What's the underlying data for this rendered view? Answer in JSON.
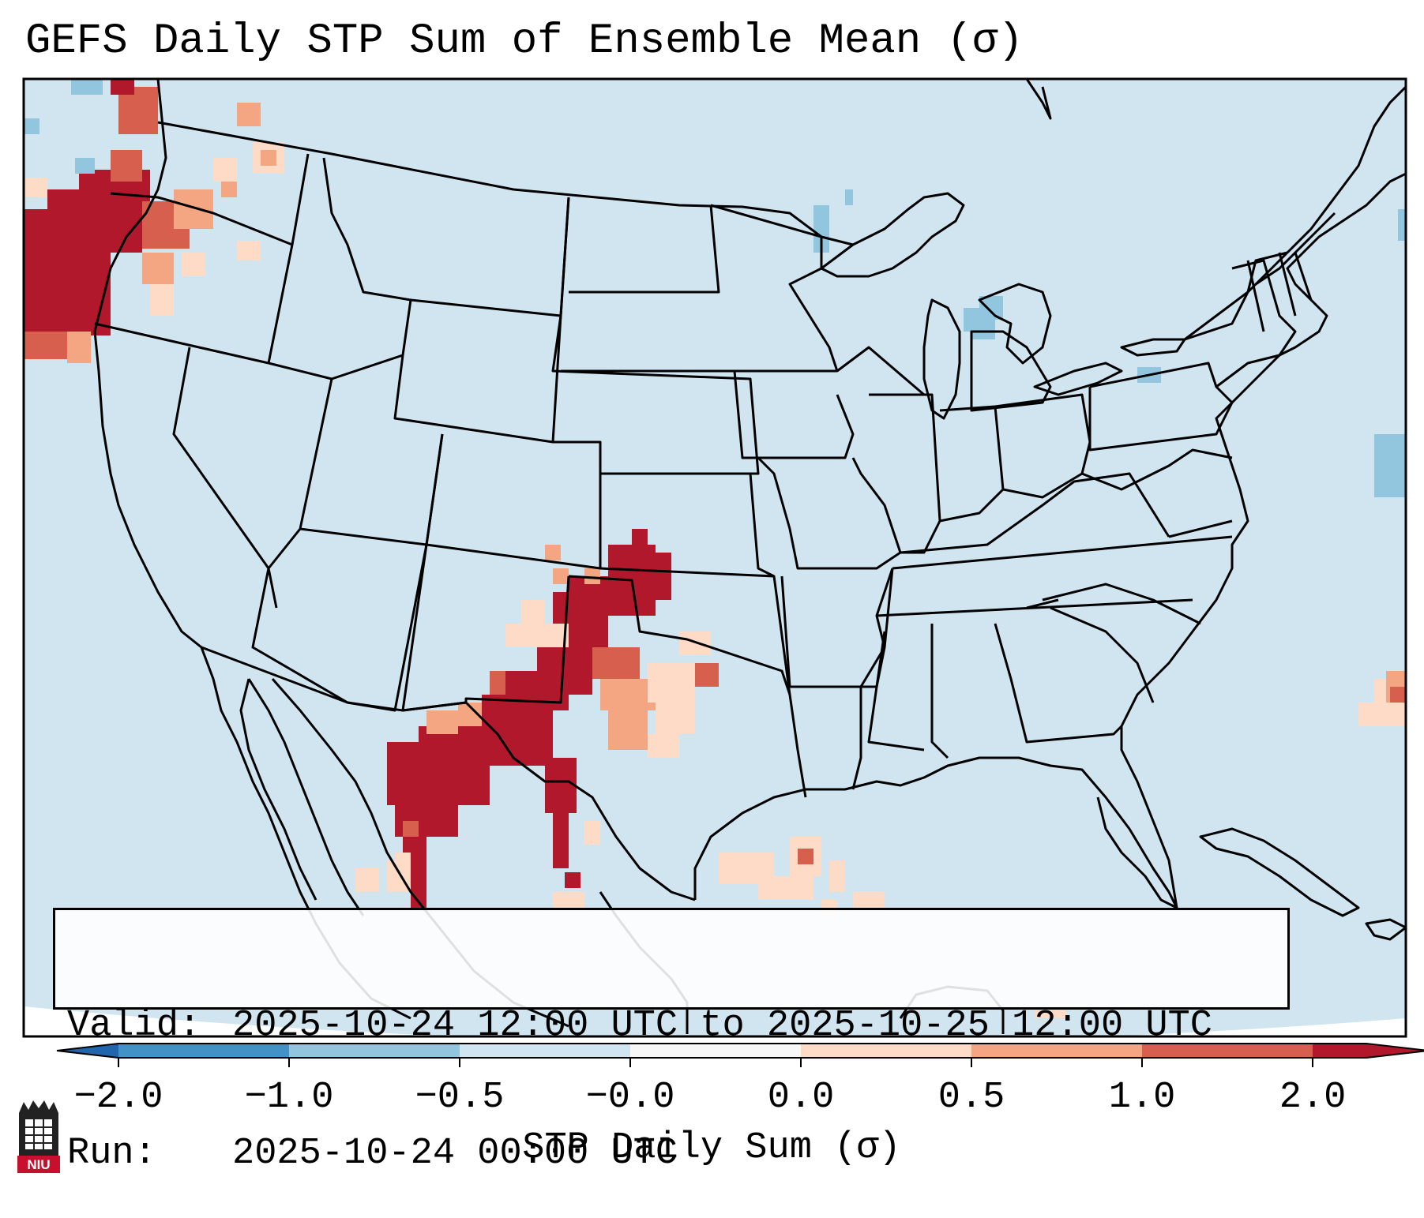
{
  "title": "GEFS Daily STP Sum of Ensemble Mean (σ)",
  "info": {
    "valid_label": "Valid:",
    "valid_text": "2025-10-24 12:00 UTC to 2025-10-25 12:00 UTC",
    "run_label": "Run:",
    "run_text": "2025-10-24 00:00 UTC"
  },
  "colorbar": {
    "label": "STP Daily Sum (σ)",
    "ticks": [
      "−2.0",
      "−1.0",
      "−0.5",
      "−0.0",
      "0.0",
      "0.5",
      "1.0",
      "2.0"
    ],
    "bin_colors": [
      "#4292c6",
      "#92c5de",
      "#d1e5f0",
      "#f7f7f7",
      "#fddbc7",
      "#f4a582",
      "#d6604d",
      "#b2182b"
    ],
    "under_color": "#2166ac",
    "over_color": "#b2182b"
  },
  "map": {
    "background_color": "#d1e5f0",
    "field": [
      {
        "id": "pacific-northwest",
        "level": "high"
      },
      {
        "id": "southern-plains",
        "level": "high"
      },
      {
        "id": "gulf-of-mexico",
        "level": "low"
      },
      {
        "id": "western-atlantic",
        "level": "low"
      },
      {
        "id": "great-lakes",
        "level": "negative"
      }
    ]
  },
  "logo": {
    "text": "NIU",
    "icon": "university-tower-icon"
  }
}
